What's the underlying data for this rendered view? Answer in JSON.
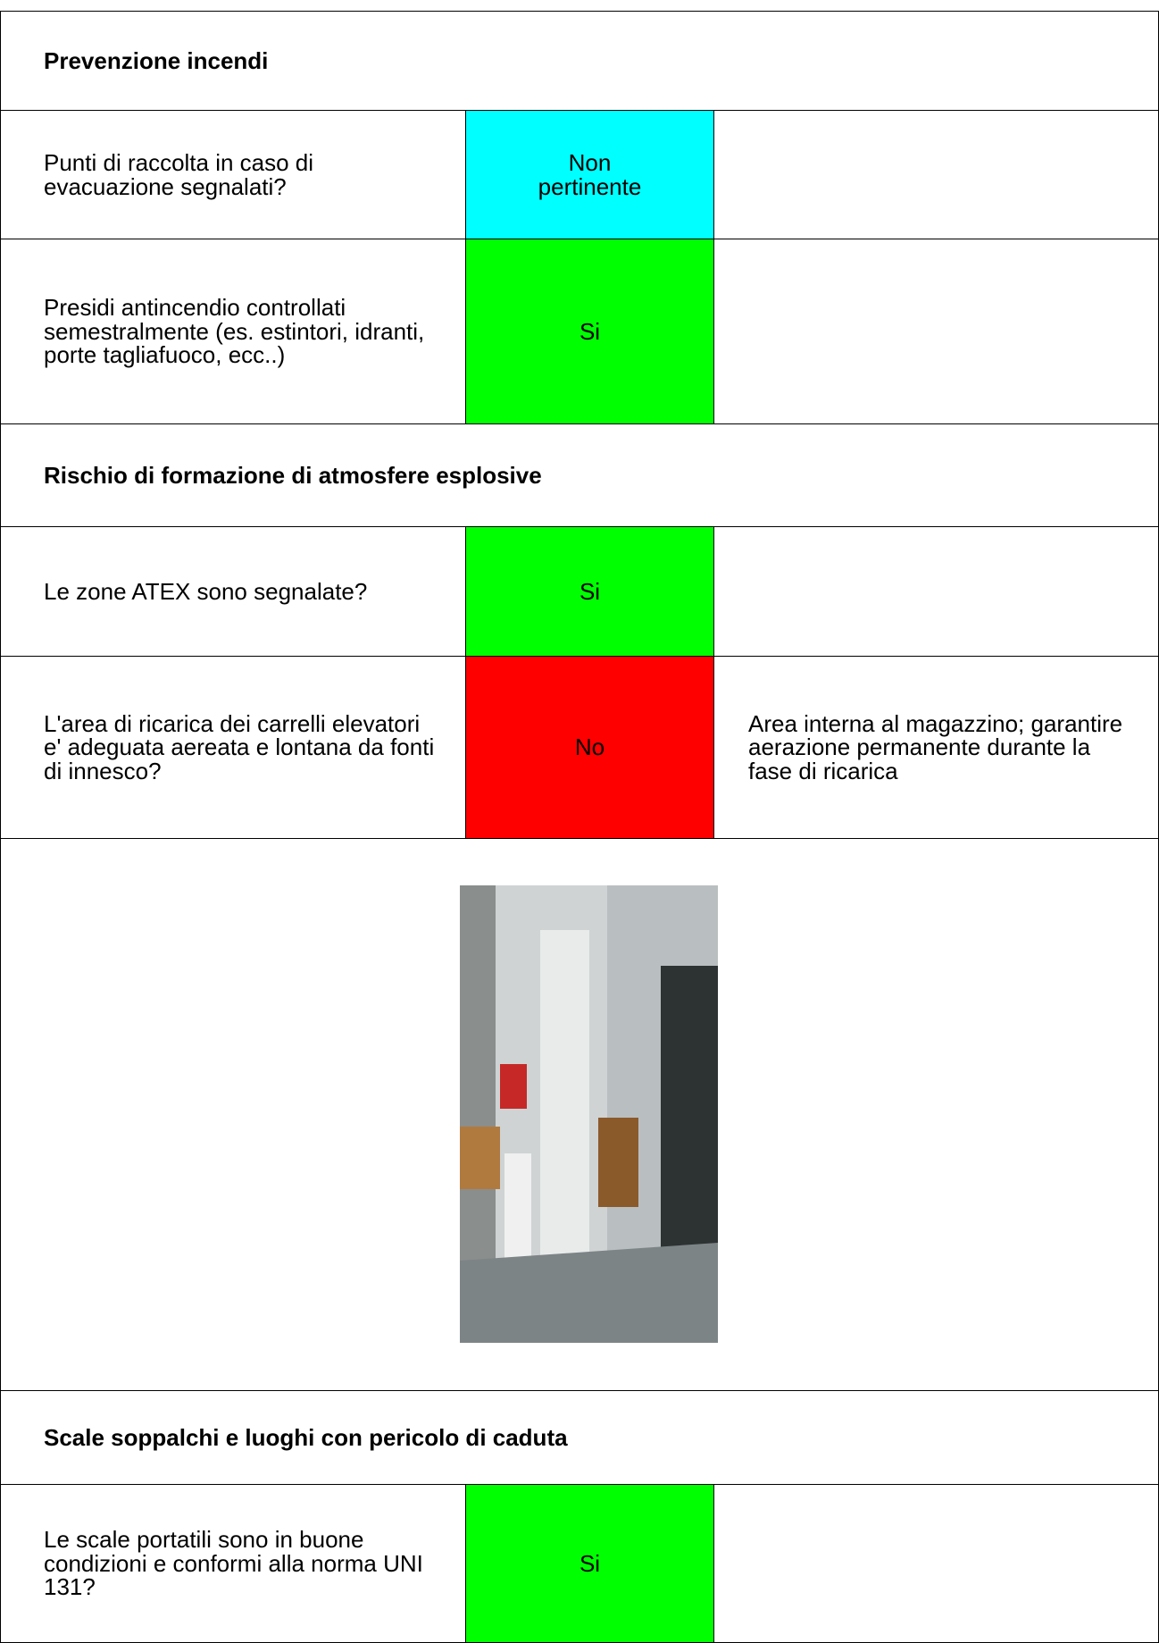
{
  "sections": [
    {
      "title": "Prevenzione incendi",
      "rows": [
        {
          "question": "Punti di raccolta in caso di evacuazione segnalati?",
          "answer": "Non pertinente",
          "color": "#00ffff"
        },
        {
          "question": "Presidi antincendio controllati semestralmente (es. estintori, idranti, porte tagliafuoco, ecc..)",
          "answer": "Si",
          "color": "#00ff00"
        }
      ]
    },
    {
      "title": "Rischio di formazione di atmosfere esplosive",
      "rows": [
        {
          "question": "Le zone ATEX sono segnalate?",
          "answer": "Si",
          "color": "#00ff00"
        },
        {
          "question": "L'area di ricarica dei carrelli elevatori e' adeguata aereata e lontana da fonti di innesco?",
          "answer": "No",
          "color": "#ff0000",
          "note": "Area interna al magazzino; garantire aerazione permanente durante la fase di ricarica"
        }
      ]
    },
    {
      "title": "Scale soppalchi e luoghi con pericolo di caduta",
      "rows": [
        {
          "question": "Le scale portatili sono in buone condizioni e conformi alla norma UNI 131?",
          "answer": "Si",
          "color": "#00ff00"
        }
      ]
    }
  ]
}
